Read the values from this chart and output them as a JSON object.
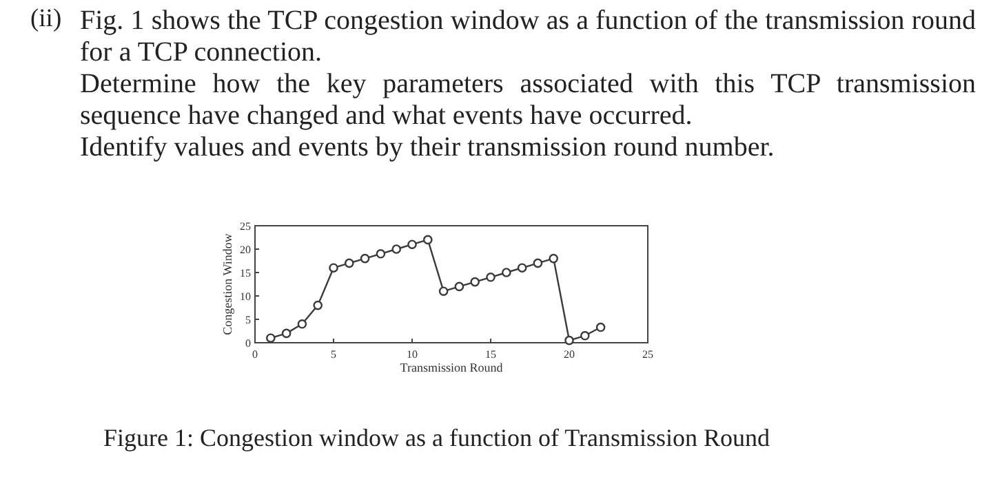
{
  "chart_data": {
    "type": "line",
    "xlabel": "Transmission Round",
    "ylabel": "Congestion Window",
    "x": [
      1,
      2,
      3,
      4,
      5,
      6,
      7,
      8,
      9,
      10,
      11,
      12,
      13,
      14,
      15,
      16,
      17,
      18,
      19,
      20,
      21,
      22
    ],
    "series": [
      {
        "color": "#3a3a3a",
        "values": [
          1,
          2,
          4,
          8,
          16,
          17,
          18,
          19,
          20,
          21,
          22,
          11,
          12,
          13,
          14,
          15,
          16,
          17,
          18,
          0.5,
          1.5,
          3.3
        ]
      }
    ],
    "xlim": [
      0,
      25
    ],
    "ylim": [
      0,
      25
    ],
    "xticks": [
      0,
      5,
      10,
      15,
      20,
      25
    ],
    "yticks": [
      0,
      5,
      10,
      15,
      20,
      25
    ],
    "marker": "circle",
    "line_style": "solid",
    "grid": false,
    "annotations": [
      "(ii)",
      "Fig. 1 shows the TCP congestion window as a function of the transmission round for a TCP connection.",
      "Determine how the key parameters associated with this TCP transmission sequence have changed and what events have occurred.",
      "Identify values and events by their transmission round number.",
      "Figure 1: Congestion window as a function of Transmission Round"
    ]
  }
}
